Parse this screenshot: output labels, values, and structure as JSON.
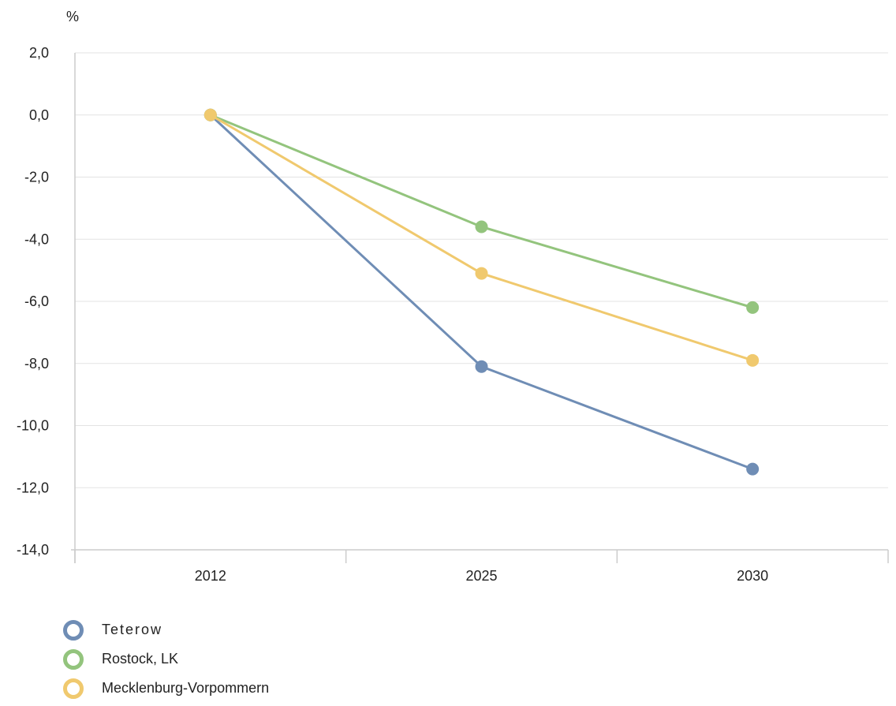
{
  "chart_data": {
    "type": "line",
    "unit_label": "%",
    "categories": [
      "2012",
      "2025",
      "2030"
    ],
    "ylim": [
      -14,
      2
    ],
    "yticks": [
      2,
      0,
      -2,
      -4,
      -6,
      -8,
      -10,
      -12,
      -14
    ],
    "ytick_labels": [
      "2,0",
      "0,0",
      "-2,0",
      "-4,0",
      "-6,0",
      "-8,0",
      "-10,0",
      "-12,0",
      "-14,0"
    ],
    "grid": true,
    "legend_position": "bottom-left",
    "series": [
      {
        "name": "Teterow",
        "color": "#6f8db5",
        "values": [
          0.0,
          -8.1,
          -11.4
        ]
      },
      {
        "name": "Rostock, LK",
        "color": "#93c47d",
        "values": [
          0.0,
          -3.6,
          -6.2
        ]
      },
      {
        "name": "Mecklenburg-Vorpommern",
        "color": "#f0c96e",
        "values": [
          0.0,
          -5.1,
          -7.9
        ]
      }
    ]
  }
}
